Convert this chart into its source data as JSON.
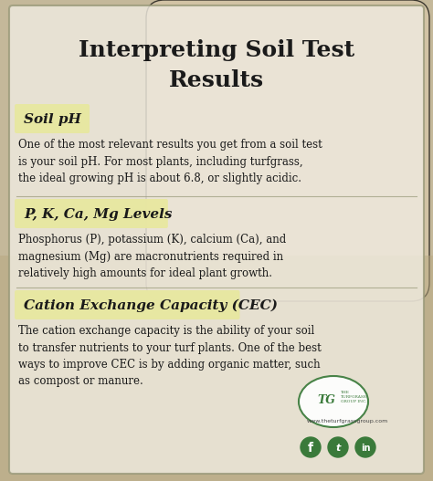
{
  "title_line1": "Interpreting Soil Test",
  "title_line2": "Results",
  "title_fontsize": 18,
  "title_color": "#1a1a1a",
  "bg_color": "#b8ad98",
  "card_bg": "#ede8d8",
  "highlight_bg": "#e8e8a0",
  "body_text_color": "#1a1a1a",
  "sections": [
    {
      "heading": "Soil pH",
      "body": "One of the most relevant results you get from a soil test\nis your soil pH. For most plants, including turfgrass,\nthe ideal growing pH is about 6.8, or slightly acidic."
    },
    {
      "heading": "P, K, Ca, Mg Levels",
      "body": "Phosphorus (P), potassium (K), calcium (Ca), and\nmagnesium (Mg) are macronutrients required in\nrelatively high amounts for ideal plant growth."
    },
    {
      "heading": "Cation Exchange Capacity (CEC)",
      "body": "The cation exchange capacity is the ability of your soil\nto transfer nutrients to your turf plants. One of the best\nways to improve CEC is by adding organic matter, such\nas compost or manure."
    }
  ],
  "website": "www.theturfgrassgroup.com",
  "icon_color": "#3a7a3a",
  "border_color": "#9a9a7a",
  "outer_bg": "#b0a890",
  "photo_tint": "#c8b898",
  "white_overlay": "#f0ebe0"
}
